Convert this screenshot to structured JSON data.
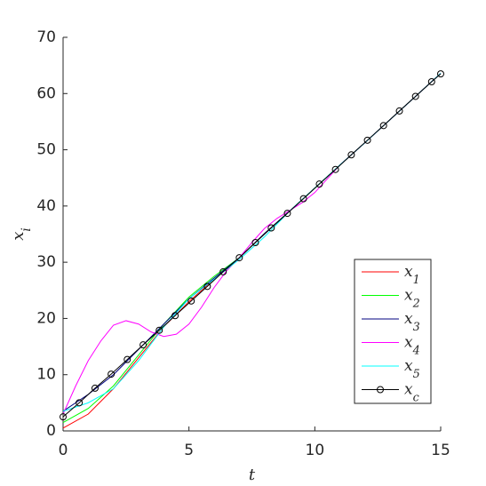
{
  "chart_data": {
    "type": "line",
    "xlabel": "t",
    "ylabel": "x_i",
    "xlim": [
      0,
      15
    ],
    "ylim": [
      0,
      70
    ],
    "xticks": [
      0,
      5,
      10,
      15
    ],
    "yticks": [
      0,
      10,
      20,
      30,
      40,
      50,
      60,
      70
    ],
    "legend": "southeast",
    "series": [
      {
        "name": "x_1",
        "color": "#ff0000",
        "x": [
          0,
          1,
          2,
          3,
          4,
          5,
          6,
          7,
          8,
          9,
          10,
          11,
          12,
          13,
          14,
          15
        ],
        "values": [
          0.5,
          3,
          7.5,
          13,
          18.5,
          23,
          27,
          30.8,
          35.1,
          39.1,
          43.2,
          47.3,
          51.3,
          55.4,
          59.5,
          63.6
        ]
      },
      {
        "name": "x_2",
        "color": "#00ff00",
        "x": [
          0,
          1,
          2,
          3,
          4,
          5,
          6,
          7,
          8,
          9,
          10,
          11,
          12,
          13,
          14,
          15
        ],
        "values": [
          1.5,
          4,
          8,
          13.5,
          19,
          23.8,
          27.5,
          30.8,
          35.1,
          39.1,
          43.2,
          47.3,
          51.3,
          55.4,
          59.5,
          63.6
        ]
      },
      {
        "name": "x_3",
        "color": "#000080",
        "x": [
          0,
          1,
          2,
          3,
          4,
          5,
          6,
          7,
          8,
          9,
          10,
          11,
          12,
          13,
          14,
          15
        ],
        "values": [
          3.5,
          6.5,
          10,
          14.5,
          19,
          23.5,
          27.2,
          30.8,
          35.1,
          39.1,
          43.2,
          47.3,
          51.3,
          55.4,
          59.5,
          63.6
        ]
      },
      {
        "name": "x_4",
        "color": "#ff00ff",
        "x": [
          0,
          0.5,
          1,
          1.5,
          2,
          2.5,
          3,
          3.5,
          4,
          4.5,
          5,
          5.5,
          6,
          6.5,
          7,
          7.5,
          8,
          8.5,
          9,
          9.5,
          10,
          11,
          12,
          13,
          14,
          15
        ],
        "values": [
          3,
          8,
          12.5,
          16,
          18.8,
          19.6,
          19,
          17.6,
          16.8,
          17.2,
          19,
          22,
          25.5,
          28.5,
          30.8,
          33.5,
          36,
          37.8,
          39.2,
          40.6,
          42.4,
          47.3,
          51.3,
          55.4,
          59.5,
          63.6
        ]
      },
      {
        "name": "x_5",
        "color": "#00ffff",
        "x": [
          0,
          1,
          2,
          3,
          4,
          5,
          6,
          7,
          8,
          9,
          10,
          11,
          12,
          13,
          14,
          15
        ],
        "values": [
          3.5,
          5,
          7.5,
          12.5,
          18.5,
          23.5,
          27,
          30.5,
          34.5,
          39.1,
          43.2,
          47.3,
          51.3,
          55.4,
          59.5,
          63.6
        ]
      },
      {
        "name": "x_c",
        "color": "#000000",
        "marker": "o",
        "x": [
          0,
          0.64,
          1.27,
          1.91,
          2.55,
          3.18,
          3.82,
          4.45,
          5.09,
          5.73,
          6.36,
          7.0,
          7.64,
          8.27,
          8.91,
          9.55,
          10.18,
          10.82,
          11.45,
          12.09,
          12.73,
          13.36,
          14.0,
          14.64,
          15
        ],
        "values": [
          2.5,
          5.0,
          7.6,
          10.1,
          12.7,
          15.3,
          17.9,
          20.5,
          23.1,
          25.7,
          28.3,
          30.8,
          33.5,
          36.1,
          38.7,
          41.3,
          43.9,
          46.5,
          49.1,
          51.7,
          54.3,
          56.9,
          59.5,
          62.1,
          63.5
        ]
      }
    ]
  }
}
